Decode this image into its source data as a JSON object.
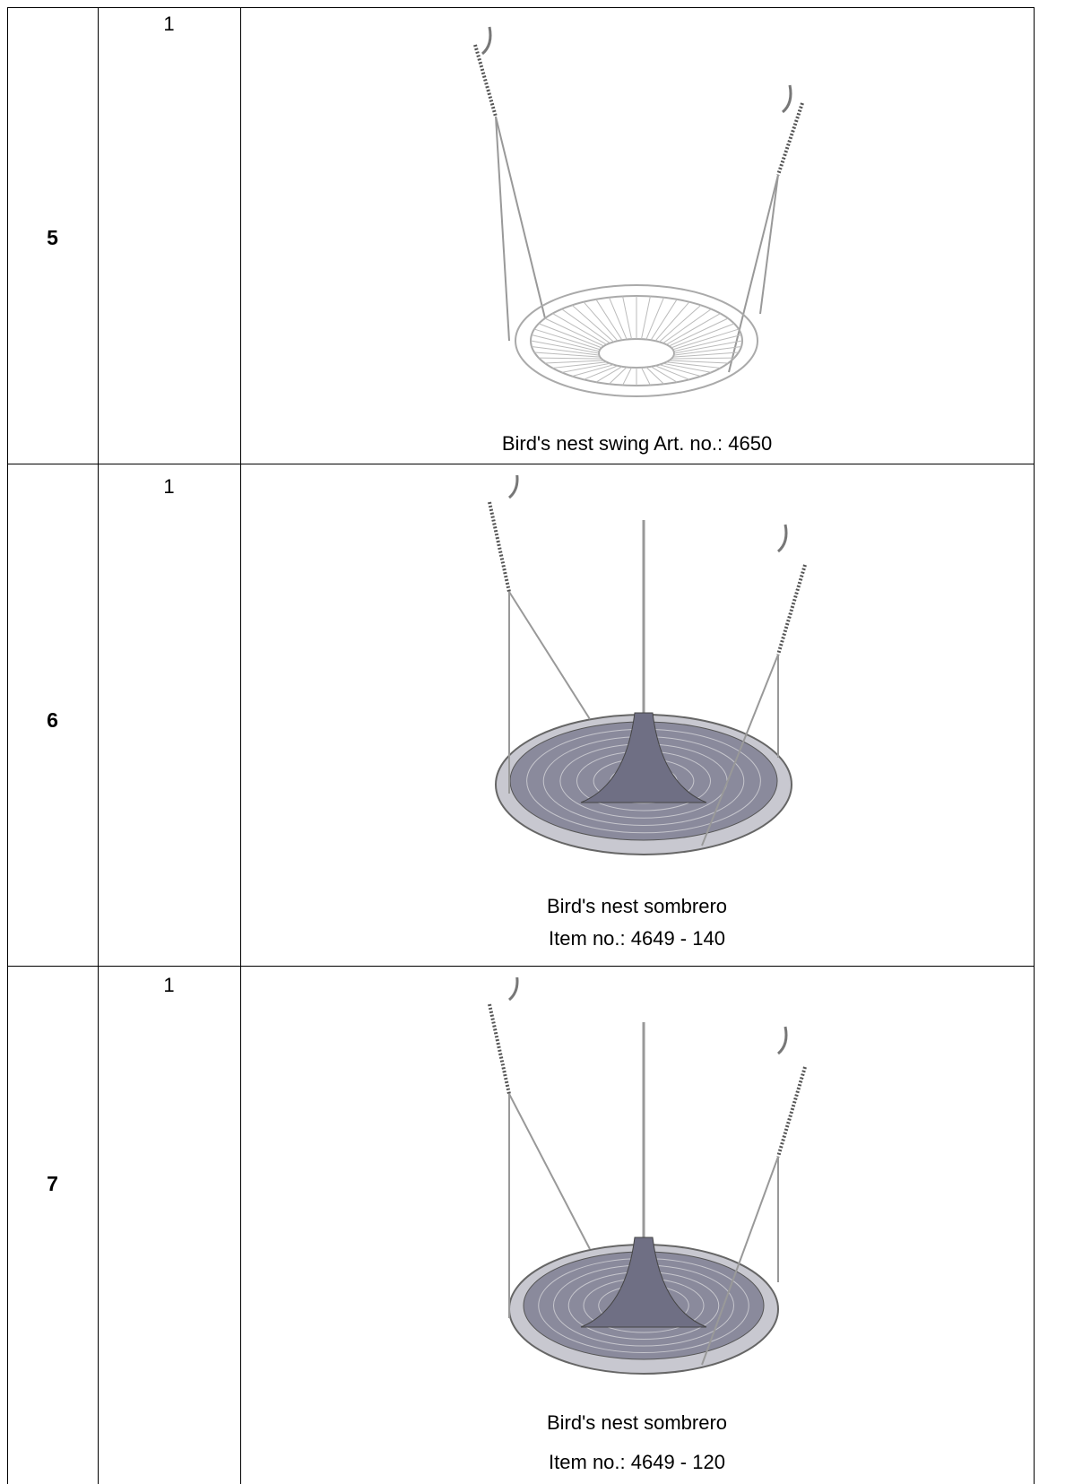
{
  "table": {
    "rows": [
      {
        "number": "5",
        "quantity": "1",
        "caption": [
          "Bird's nest swing Art. no.: 4650"
        ]
      },
      {
        "number": "6",
        "quantity": "1",
        "caption": [
          "Bird's nest sombrero",
          "Item no.: 4649 - 140"
        ]
      },
      {
        "number": "7",
        "quantity": "1",
        "caption": [
          "Bird's nest sombrero",
          "Item no.: 4649 - 120"
        ]
      }
    ]
  }
}
